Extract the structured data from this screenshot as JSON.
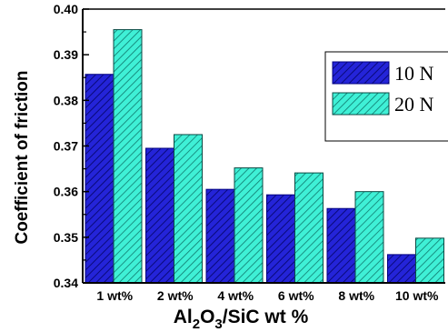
{
  "chart_data": {
    "type": "bar",
    "title": "",
    "xlabel": {
      "parts": [
        {
          "text": "Al",
          "sub": false
        },
        {
          "text": "2",
          "sub": true
        },
        {
          "text": "O",
          "sub": false
        },
        {
          "text": "3",
          "sub": true
        },
        {
          "text": "/SiC wt %",
          "sub": false
        }
      ]
    },
    "ylabel": "Coefficient of friction",
    "categories": [
      "1 wt%",
      "2 wt%",
      "4 wt%",
      "6 wt%",
      "8 wt%",
      "10 wt%"
    ],
    "series": [
      {
        "name": "10 N",
        "values": [
          0.3857,
          0.3695,
          0.3605,
          0.3593,
          0.3563,
          0.3462
        ],
        "color": "#1c1ccc",
        "pattern": "diagonal-hatch"
      },
      {
        "name": "20 N",
        "values": [
          0.3955,
          0.3725,
          0.3652,
          0.3641,
          0.36,
          0.3498
        ],
        "color": "#33e0c8",
        "pattern": "diagonal-hatch"
      }
    ],
    "ylim": [
      0.34,
      0.4
    ],
    "yticks": [
      "0.34",
      "0.35",
      "0.36",
      "0.37",
      "0.38",
      "0.39",
      "0.40"
    ],
    "legend_position": "top-right",
    "grid": false
  }
}
